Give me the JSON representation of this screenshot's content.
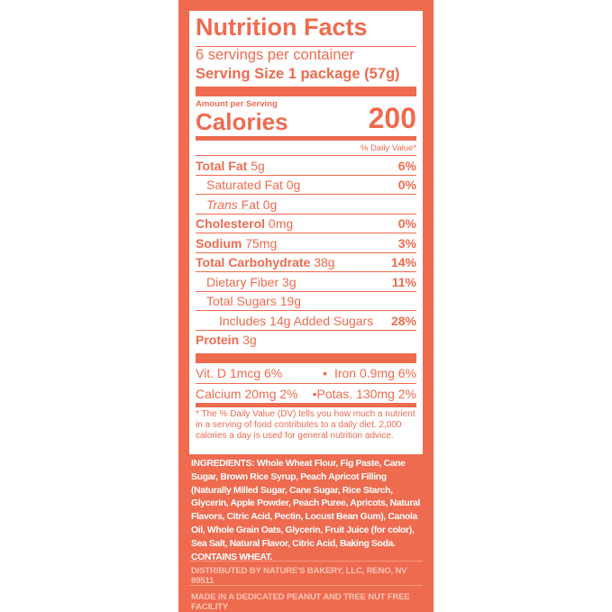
{
  "header": {
    "title": "Nutrition Facts",
    "servings": "6 servings per container",
    "serving_size": "Serving Size 1 package (57g)"
  },
  "calories": {
    "caption": "Amount per Serving",
    "label": "Calories",
    "value": "200"
  },
  "dv_header": "% Daily Value*",
  "nutrients": [
    {
      "name": "Total Fat",
      "amount": "5g",
      "dv": "6%"
    },
    {
      "name": "Saturated Fat",
      "amount": "0g",
      "dv": "0%"
    },
    {
      "name_italic": "Trans",
      "name": "Fat",
      "amount": "0g"
    },
    {
      "name": "Cholesterol",
      "amount": "0mg",
      "dv": "0%"
    },
    {
      "name": "Sodium",
      "amount": "75mg",
      "dv": "3%"
    },
    {
      "name": "Total Carbohydrate",
      "amount": "38g",
      "dv": "14%"
    },
    {
      "name": "Dietary Fiber",
      "amount": "3g",
      "dv": "11%"
    },
    {
      "name": "Total Sugars",
      "amount": "19g"
    },
    {
      "name": "Includes 14g Added Sugars",
      "dv": "28%"
    },
    {
      "name": "Protein",
      "amount": "3g"
    }
  ],
  "vitamins": [
    {
      "left": "Vit. D 1mcg 6%",
      "right": "Iron 0.9mg 6%"
    },
    {
      "left": "Calcium 20mg 2%",
      "right": "Potas. 130mg 2%"
    }
  ],
  "footnote": "* The % Daily Value (DV) tells you how much a nutrient in a serving of food contributes to a daily diet. 2,000 calories a day is used for general nutrition advice.",
  "ingredients": {
    "label": "INGREDIENTS:",
    "text": "Whole Wheat Flour, Fig Paste, Cane Sugar, Brown Rice Syrup, Peach Apricot Filling (Naturally Milled Sugar, Cane Sugar, Rice Starch, Glycerin, Apple Powder, Peach Puree, Apricots, Natural Flavors, Citric Acid, Pectin, Locust Bean Gum), Canola Oil, Whole Grain Oats, Glycerin, Fruit Juice (for color), Sea Salt, Natural Flavor, Citric Acid, Baking Soda.",
    "allergen": "CONTAINS WHEAT."
  },
  "distributor": "DISTRIBUTED BY NATURE'S BAKERY, LLC, RENO, NV 89511",
  "facility": "MADE IN A DEDICATED PEANUT AND TREE NUT FREE FACILITY"
}
